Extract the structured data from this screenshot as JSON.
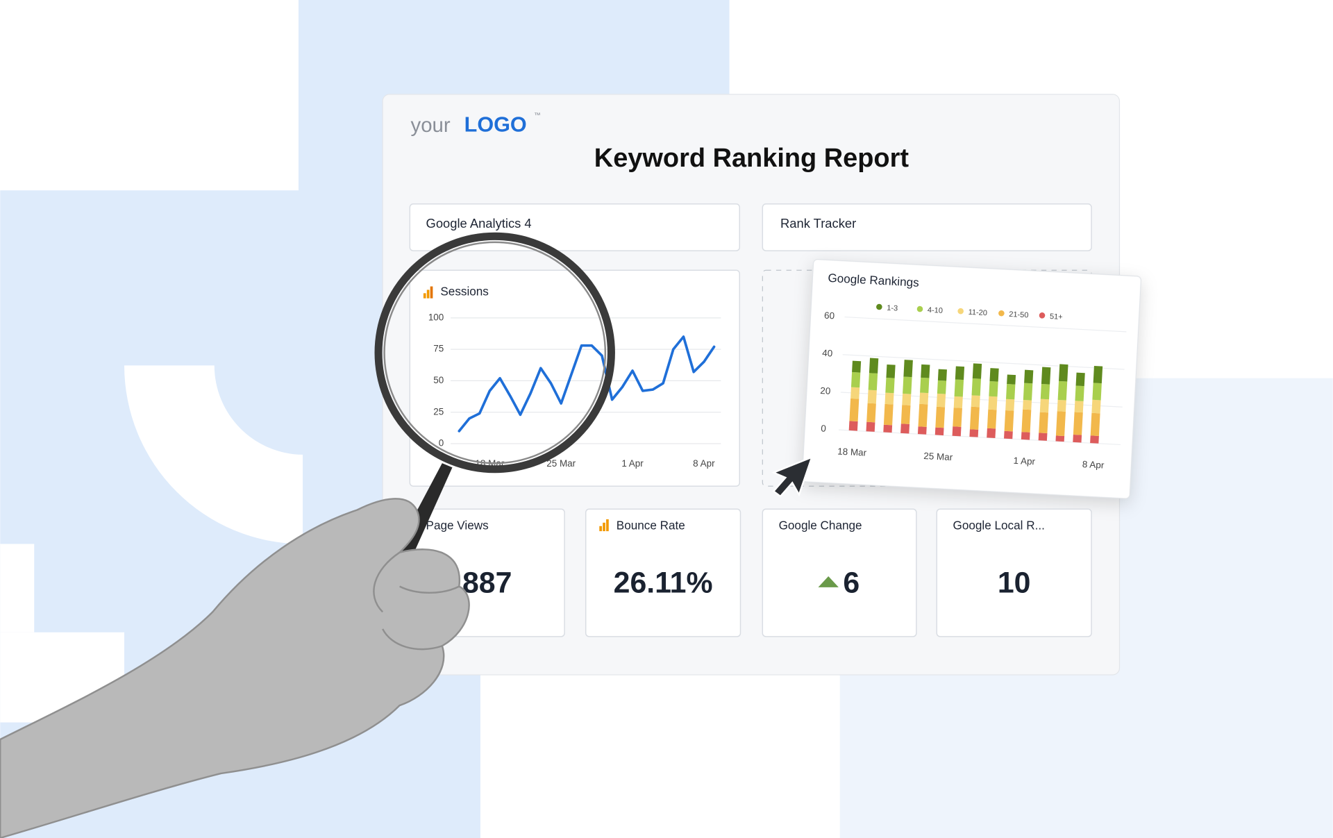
{
  "logo": {
    "prefix": "your",
    "brand": "LOGO",
    "mark": "™"
  },
  "title": "Keyword Ranking Report",
  "sections": [
    "Google Analytics 4",
    "Rank Tracker"
  ],
  "chart_data": [
    {
      "type": "line",
      "title": "Sessions",
      "color": "#1f6fd8",
      "grid": true,
      "categories": [
        null,
        null,
        null,
        "18 Mar",
        null,
        null,
        null,
        null,
        null,
        null,
        "25 Mar",
        null,
        null,
        null,
        null,
        null,
        null,
        "1 Apr",
        null,
        null,
        null,
        null,
        null,
        null,
        "8 Apr",
        null
      ],
      "values": [
        10,
        20,
        24,
        42,
        52,
        38,
        23,
        40,
        60,
        48,
        32,
        55,
        78,
        78,
        70,
        35,
        45,
        58,
        42,
        43,
        48,
        75,
        85,
        57,
        65,
        77
      ],
      "ylim": [
        0,
        100
      ],
      "yticks": [
        0,
        25,
        50,
        75,
        100
      ]
    },
    {
      "type": "bar",
      "stacked": true,
      "title": "Google Rankings",
      "grid": true,
      "categories": [
        "18 Mar",
        null,
        null,
        null,
        null,
        "25 Mar",
        null,
        null,
        null,
        null,
        "1 Apr",
        null,
        null,
        null,
        "8 Apr"
      ],
      "series": [
        {
          "name": "51+",
          "color": "#dd5c5c",
          "values": [
            5,
            5,
            4,
            5,
            4,
            4,
            5,
            4,
            5,
            4,
            4,
            4,
            3,
            4,
            4
          ]
        },
        {
          "name": "21-50",
          "color": "#f2b84b",
          "values": [
            12,
            10,
            11,
            10,
            12,
            11,
            10,
            12,
            10,
            11,
            12,
            11,
            13,
            12,
            12
          ]
        },
        {
          "name": "11-20",
          "color": "#f6d67a",
          "values": [
            6,
            7,
            6,
            6,
            6,
            7,
            6,
            6,
            7,
            6,
            5,
            7,
            6,
            6,
            7
          ]
        },
        {
          "name": "4-10",
          "color": "#a9cf4e",
          "values": [
            8,
            9,
            8,
            9,
            8,
            7,
            9,
            9,
            8,
            8,
            9,
            8,
            10,
            8,
            9
          ]
        },
        {
          "name": "1-3",
          "color": "#5f8a1e",
          "values": [
            6,
            8,
            7,
            9,
            7,
            6,
            7,
            8,
            7,
            5,
            7,
            9,
            9,
            7,
            9
          ]
        }
      ],
      "legend_order": [
        "1-3",
        "4-10",
        "11-20",
        "21-50",
        "51+"
      ],
      "ylim": [
        0,
        60
      ],
      "yticks": [
        0,
        20,
        40,
        60
      ]
    }
  ],
  "kpis": [
    {
      "label": "Page Views",
      "value": "887"
    },
    {
      "label": "Bounce Rate",
      "value": "26.11%"
    },
    {
      "label": "Google Change",
      "value": "6"
    },
    {
      "label": "Google Local R...",
      "value": "10"
    }
  ]
}
